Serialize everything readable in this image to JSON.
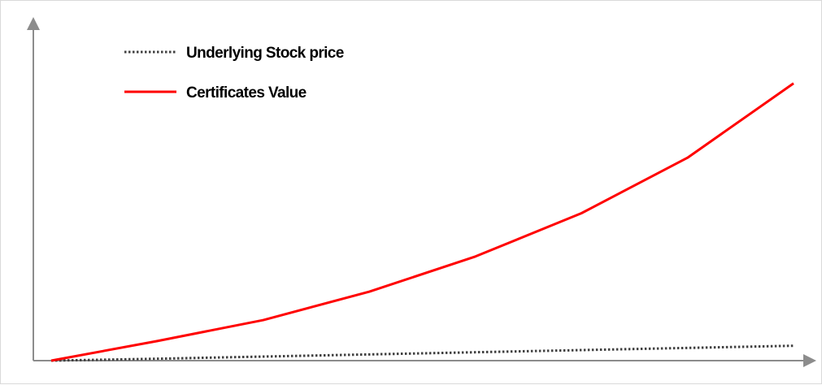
{
  "chart_data": {
    "type": "line",
    "title": "",
    "xlabel": "",
    "ylabel": "",
    "grid": false,
    "legend_position": "top-left",
    "x": [
      0,
      1,
      2,
      3,
      4,
      5,
      6,
      7
    ],
    "series": [
      {
        "name": "Underlying Stock price",
        "style": "dotted",
        "color": "#404040",
        "values": [
          0,
          1.4,
          3.0,
          4.6,
          6.2,
          7.8,
          9.4,
          11.0
        ]
      },
      {
        "name": "Certificates Value",
        "style": "solid",
        "color": "#ff0000",
        "values": [
          0,
          14.5,
          30,
          51,
          77,
          109,
          150,
          205
        ]
      }
    ],
    "xlim": [
      0,
      7
    ],
    "ylim": [
      0,
      230
    ]
  }
}
